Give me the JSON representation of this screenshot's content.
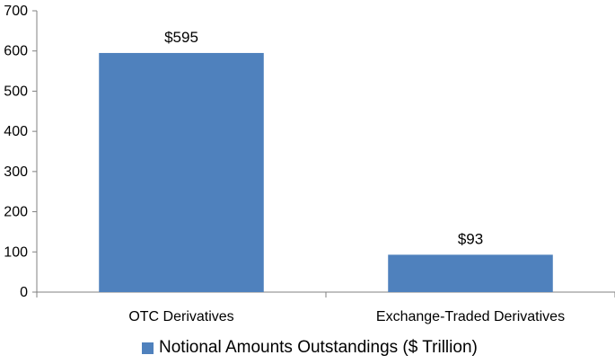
{
  "chart_data": {
    "type": "bar",
    "categories": [
      "OTC Derivatives",
      "Exchange-Traded Derivatives"
    ],
    "series": [
      {
        "name": "Notional Amounts Outstandings ($ Trillion)",
        "values": [
          595,
          93
        ]
      }
    ],
    "data_labels": [
      "$595",
      "$93"
    ],
    "ylim": [
      0,
      700
    ],
    "yticks": [
      0,
      100,
      200,
      300,
      400,
      500,
      600,
      700
    ],
    "grid": false,
    "legend_position": "bottom",
    "colors": {
      "bar": "#4F81BD",
      "axis": "#808080"
    }
  }
}
